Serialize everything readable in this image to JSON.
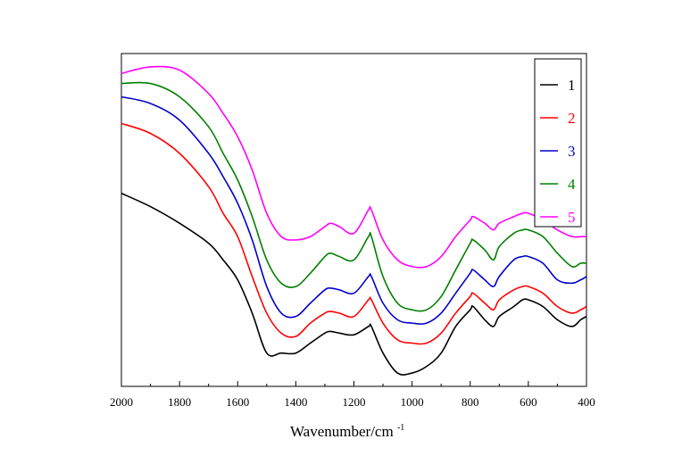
{
  "chart_data": {
    "type": "line",
    "title": "",
    "xlabel_main": "Wavenumber/cm",
    "xlabel_sup": "-1",
    "ylabel": "",
    "xlim": [
      2000,
      400
    ],
    "x_reversed": true,
    "ylim": [
      0,
      1
    ],
    "y_ticks_shown": false,
    "x_ticks": [
      2000,
      1800,
      1600,
      1400,
      1200,
      1000,
      800,
      600,
      400
    ],
    "x_tick_labels": [
      "2000",
      "1800",
      "1600",
      "1400",
      "1200",
      "1000",
      "800",
      "600",
      "400"
    ],
    "legend_position": "top-right",
    "x": [
      2000,
      1900,
      1800,
      1700,
      1650,
      1600,
      1550,
      1500,
      1450,
      1400,
      1350,
      1300,
      1280,
      1250,
      1200,
      1150,
      1140,
      1100,
      1050,
      1000,
      950,
      900,
      850,
      800,
      790,
      750,
      720,
      700,
      650,
      620,
      600,
      550,
      500,
      450,
      420,
      400
    ],
    "series": [
      {
        "name": "1",
        "color": "#000000",
        "values": [
          0.58,
          0.54,
          0.49,
          0.43,
          0.38,
          0.32,
          0.22,
          0.1,
          0.1,
          0.1,
          0.13,
          0.16,
          0.165,
          0.16,
          0.155,
          0.18,
          0.18,
          0.1,
          0.04,
          0.04,
          0.06,
          0.1,
          0.18,
          0.23,
          0.24,
          0.2,
          0.18,
          0.21,
          0.24,
          0.26,
          0.26,
          0.24,
          0.2,
          0.18,
          0.2,
          0.21
        ]
      },
      {
        "name": "2",
        "color": "#ff0000",
        "values": [
          0.79,
          0.76,
          0.7,
          0.6,
          0.52,
          0.45,
          0.33,
          0.22,
          0.16,
          0.15,
          0.19,
          0.22,
          0.225,
          0.22,
          0.21,
          0.26,
          0.26,
          0.19,
          0.14,
          0.13,
          0.13,
          0.16,
          0.22,
          0.27,
          0.28,
          0.25,
          0.23,
          0.26,
          0.29,
          0.3,
          0.3,
          0.28,
          0.24,
          0.22,
          0.23,
          0.24
        ]
      },
      {
        "name": "3",
        "color": "#0000cc",
        "values": [
          0.87,
          0.85,
          0.8,
          0.7,
          0.63,
          0.55,
          0.44,
          0.3,
          0.22,
          0.21,
          0.25,
          0.29,
          0.295,
          0.29,
          0.28,
          0.33,
          0.33,
          0.25,
          0.2,
          0.19,
          0.19,
          0.22,
          0.28,
          0.34,
          0.35,
          0.32,
          0.3,
          0.33,
          0.38,
          0.39,
          0.39,
          0.37,
          0.32,
          0.31,
          0.32,
          0.33
        ]
      },
      {
        "name": "4",
        "color": "#008000",
        "values": [
          0.91,
          0.91,
          0.87,
          0.78,
          0.7,
          0.62,
          0.51,
          0.38,
          0.31,
          0.3,
          0.34,
          0.39,
          0.4,
          0.39,
          0.38,
          0.45,
          0.45,
          0.33,
          0.25,
          0.23,
          0.23,
          0.27,
          0.35,
          0.43,
          0.44,
          0.41,
          0.38,
          0.42,
          0.46,
          0.47,
          0.47,
          0.45,
          0.4,
          0.36,
          0.37,
          0.37
        ]
      },
      {
        "name": "5",
        "color": "#ff00ff",
        "values": [
          0.94,
          0.96,
          0.95,
          0.88,
          0.82,
          0.75,
          0.65,
          0.52,
          0.45,
          0.44,
          0.45,
          0.48,
          0.49,
          0.48,
          0.46,
          0.53,
          0.53,
          0.44,
          0.38,
          0.36,
          0.36,
          0.39,
          0.45,
          0.5,
          0.51,
          0.49,
          0.47,
          0.49,
          0.51,
          0.52,
          0.52,
          0.5,
          0.47,
          0.45,
          0.45,
          0.45
        ]
      }
    ]
  }
}
